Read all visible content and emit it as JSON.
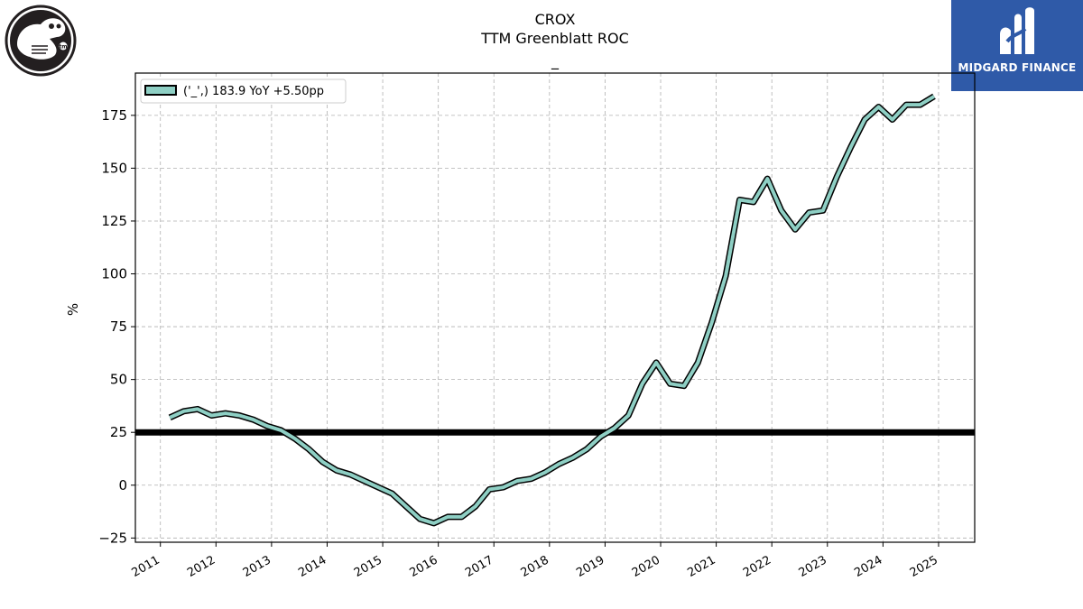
{
  "header": {
    "ticker": "CROX",
    "metric": "TTM Greenblatt ROC",
    "subtitle": "_"
  },
  "brand": {
    "name": "MIDGARD FINANCE",
    "color": "#2f5aa8"
  },
  "logo": {
    "icon": "crocodile-logo-icon",
    "mark": "tm"
  },
  "chart_data": {
    "type": "line",
    "title": "CROX\nTTM Greenblatt ROC",
    "ylabel": "%",
    "xlabel": "",
    "xlim": [
      2010.55,
      2025.65
    ],
    "ylim": [
      -27,
      195
    ],
    "yticks": [
      -25,
      0,
      25,
      50,
      75,
      100,
      125,
      150,
      175
    ],
    "xticks": [
      "2011",
      "2012",
      "2013",
      "2014",
      "2015",
      "2016",
      "2017",
      "2018",
      "2019",
      "2020",
      "2021",
      "2022",
      "2023",
      "2024",
      "2025"
    ],
    "grid": true,
    "legend_position": "top-left",
    "reference_line": {
      "y": 25,
      "color": "#000000"
    },
    "series": [
      {
        "name": "('_',) 183.9 YoY +5.50pp",
        "color": "#8ecfc4",
        "edge_color": "#000000",
        "x": [
          2011.17,
          2011.42,
          2011.67,
          2011.92,
          2012.17,
          2012.42,
          2012.67,
          2012.92,
          2013.17,
          2013.42,
          2013.67,
          2013.92,
          2014.17,
          2014.42,
          2014.67,
          2014.92,
          2015.17,
          2015.42,
          2015.67,
          2015.92,
          2016.17,
          2016.42,
          2016.67,
          2016.92,
          2017.17,
          2017.42,
          2017.67,
          2017.92,
          2018.17,
          2018.42,
          2018.67,
          2018.92,
          2019.17,
          2019.42,
          2019.67,
          2019.92,
          2020.17,
          2020.42,
          2020.67,
          2020.92,
          2021.17,
          2021.42,
          2021.67,
          2021.92,
          2022.17,
          2022.42,
          2022.67,
          2022.92,
          2023.17,
          2023.42,
          2023.67,
          2023.92,
          2024.17,
          2024.42,
          2024.67,
          2024.92
        ],
        "values": [
          32,
          35,
          36,
          33,
          34,
          33,
          31,
          28,
          26,
          22,
          17,
          11,
          7,
          5,
          2,
          -1,
          -4,
          -10,
          -16,
          -18,
          -15,
          -15,
          -10,
          -2,
          -1,
          2,
          3,
          6,
          10,
          13,
          17,
          23,
          27,
          33,
          48,
          58,
          48,
          47,
          58,
          77,
          99,
          135,
          134,
          145,
          130,
          121,
          129,
          130,
          146,
          160,
          173,
          179,
          173,
          180,
          180,
          184
        ]
      }
    ]
  }
}
